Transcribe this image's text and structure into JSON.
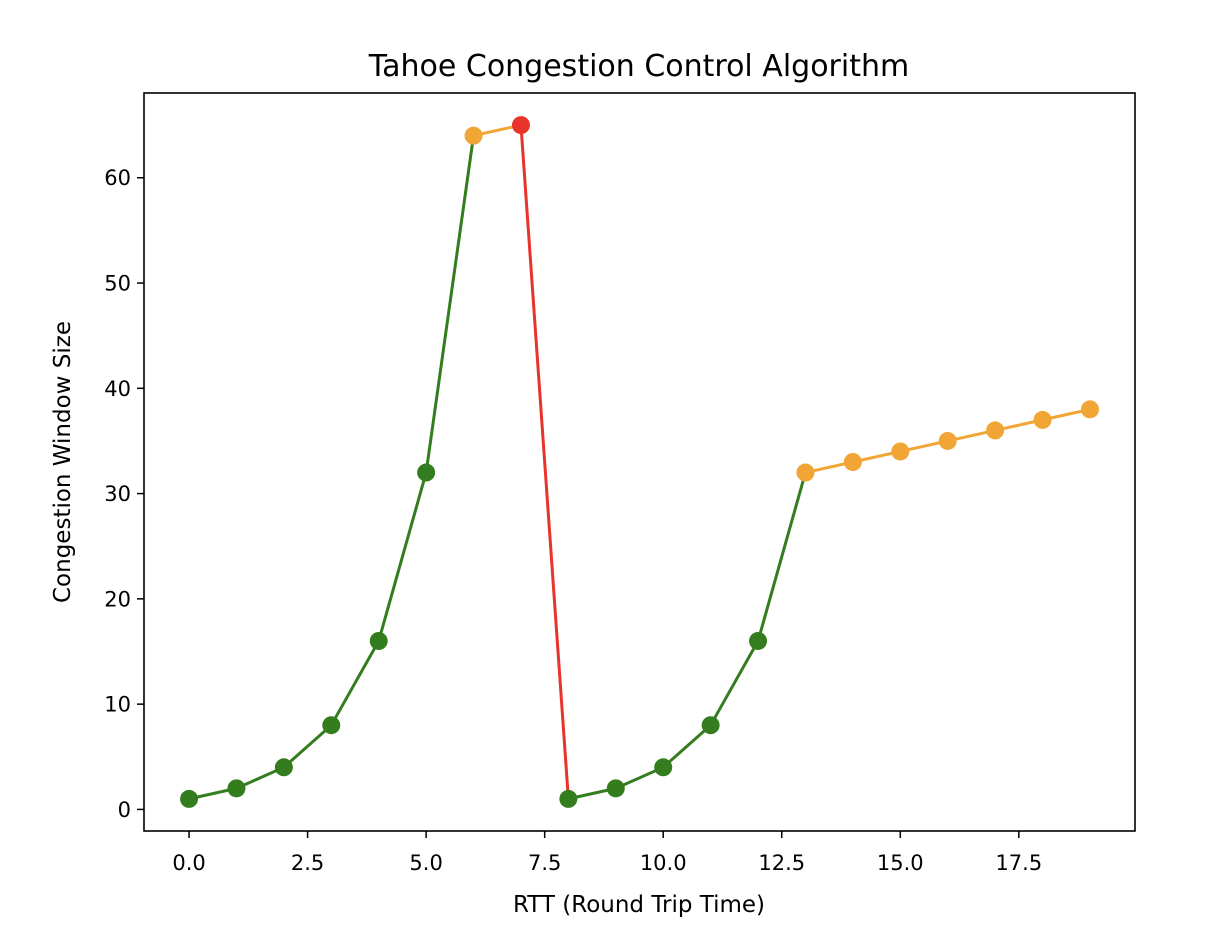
{
  "chart_data": {
    "type": "line",
    "title": "Tahoe Congestion Control Algorithm",
    "xlabel": "RTT (Round Trip Time)",
    "ylabel": "Congestion Window Size",
    "xlim": [
      -0.95,
      19.95
    ],
    "ylim": [
      -2.05,
      68.05
    ],
    "x_ticks": [
      0,
      2.5,
      5,
      7.5,
      10,
      12.5,
      15,
      17.5
    ],
    "x_tick_labels": [
      "0.0",
      "2.5",
      "5.0",
      "7.5",
      "10.0",
      "12.5",
      "15.0",
      "17.5"
    ],
    "y_ticks": [
      0,
      10,
      20,
      30,
      40,
      50,
      60
    ],
    "y_tick_labels": [
      "0",
      "10",
      "20",
      "30",
      "40",
      "50",
      "60"
    ],
    "grid": false,
    "legend": false,
    "colors": {
      "slow_start": "#347d1f",
      "congestion_avoidance": "#f0a535",
      "loss": "#e8342a"
    },
    "segments": [
      {
        "phase": "slow_start",
        "x": [
          0,
          1,
          2,
          3,
          4,
          5
        ],
        "y": [
          1,
          2,
          4,
          8,
          16,
          32
        ],
        "marker_start": 0,
        "marker_end": 5
      },
      {
        "phase": "slow_start",
        "x": [
          5,
          6
        ],
        "y": [
          32,
          64
        ],
        "marker_start": 1,
        "marker_end": 0
      },
      {
        "phase": "congestion_avoidance",
        "x": [
          6,
          7
        ],
        "y": [
          64,
          65
        ],
        "marker_start": 0,
        "marker_end": 0
      },
      {
        "phase": "loss",
        "x": [
          7,
          8
        ],
        "y": [
          65,
          1
        ],
        "marker_start": 0,
        "marker_end": 0
      },
      {
        "phase": "slow_start",
        "x": [
          8,
          9,
          10,
          11,
          12,
          13
        ],
        "y": [
          1,
          2,
          4,
          8,
          16,
          32
        ],
        "marker_start": 0,
        "marker_end": 4
      },
      {
        "phase": "congestion_avoidance",
        "x": [
          13,
          14,
          15,
          16,
          17,
          18,
          19
        ],
        "y": [
          32,
          33,
          34,
          35,
          36,
          37,
          38
        ],
        "marker_start": 0,
        "marker_end": 6
      }
    ],
    "points": [
      {
        "x": 0,
        "y": 1,
        "phase": "slow_start"
      },
      {
        "x": 1,
        "y": 2,
        "phase": "slow_start"
      },
      {
        "x": 2,
        "y": 4,
        "phase": "slow_start"
      },
      {
        "x": 3,
        "y": 8,
        "phase": "slow_start"
      },
      {
        "x": 4,
        "y": 16,
        "phase": "slow_start"
      },
      {
        "x": 5,
        "y": 32,
        "phase": "slow_start"
      },
      {
        "x": 6,
        "y": 64,
        "phase": "congestion_avoidance"
      },
      {
        "x": 7,
        "y": 65,
        "phase": "loss"
      },
      {
        "x": 8,
        "y": 1,
        "phase": "slow_start"
      },
      {
        "x": 9,
        "y": 2,
        "phase": "slow_start"
      },
      {
        "x": 10,
        "y": 4,
        "phase": "slow_start"
      },
      {
        "x": 11,
        "y": 8,
        "phase": "slow_start"
      },
      {
        "x": 12,
        "y": 16,
        "phase": "slow_start"
      },
      {
        "x": 13,
        "y": 32,
        "phase": "congestion_avoidance"
      },
      {
        "x": 14,
        "y": 33,
        "phase": "congestion_avoidance"
      },
      {
        "x": 15,
        "y": 34,
        "phase": "congestion_avoidance"
      },
      {
        "x": 16,
        "y": 35,
        "phase": "congestion_avoidance"
      },
      {
        "x": 17,
        "y": 36,
        "phase": "congestion_avoidance"
      },
      {
        "x": 18,
        "y": 37,
        "phase": "congestion_avoidance"
      },
      {
        "x": 19,
        "y": 38,
        "phase": "congestion_avoidance"
      }
    ]
  }
}
